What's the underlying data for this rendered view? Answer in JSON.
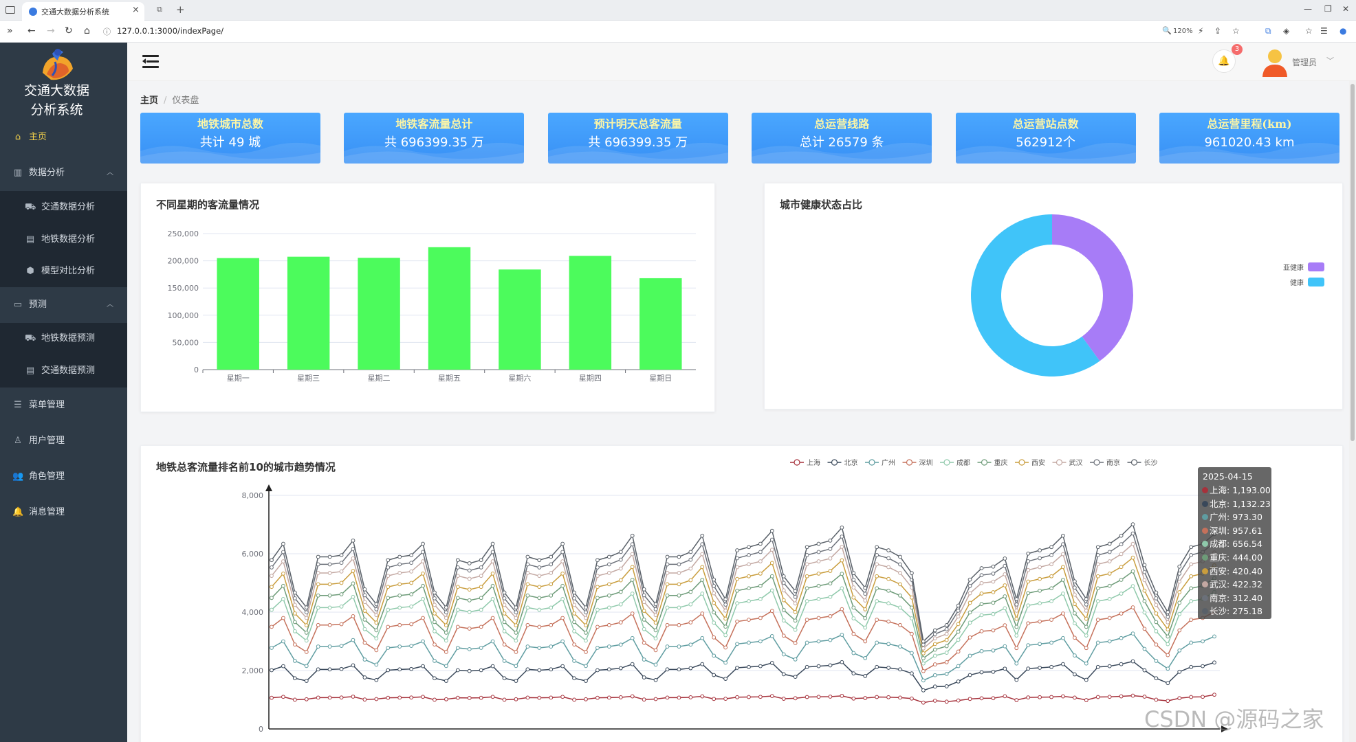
{
  "browser": {
    "tab_title": "交通大数据分析系统",
    "url": "127.0.0.1:3000/indexPage/",
    "zoom": "120%"
  },
  "sidebar": {
    "brand_line1": "交通大数据",
    "brand_line2": "分析系统",
    "items": [
      {
        "label": "主页",
        "icon": "home-icon"
      },
      {
        "label": "数据分析",
        "icon": "chart-icon"
      },
      {
        "label": "交通数据分析",
        "icon": "bus-icon"
      },
      {
        "label": "地铁数据分析",
        "icon": "metro-icon"
      },
      {
        "label": "模型对比分析",
        "icon": "cube-icon"
      },
      {
        "label": "预测",
        "icon": "monitor-icon"
      },
      {
        "label": "地铁数据预测",
        "icon": "bus-icon"
      },
      {
        "label": "交通数据预测",
        "icon": "metro-icon"
      },
      {
        "label": "菜单管理",
        "icon": "menu-icon"
      },
      {
        "label": "用户管理",
        "icon": "user-icon"
      },
      {
        "label": "角色管理",
        "icon": "team-icon"
      },
      {
        "label": "消息管理",
        "icon": "bell-icon"
      }
    ]
  },
  "header": {
    "notification_count": "3",
    "username": "管理员"
  },
  "breadcrumb": {
    "home": "主页",
    "current": "仪表盘"
  },
  "stats": [
    {
      "title": "地铁城市总数",
      "value": "共计 49 城"
    },
    {
      "title": "地铁客流量总计",
      "value": "共 696399.35 万"
    },
    {
      "title": "预计明天总客流量",
      "value": "共 696399.35 万"
    },
    {
      "title": "总运营线路",
      "value": "总计 26579 条"
    },
    {
      "title": "总运营站点数",
      "value": "562912个"
    },
    {
      "title": "总运营里程(km)",
      "value": "961020.43 km"
    }
  ],
  "colors": {
    "sidebar_bg": "#2e3a46",
    "active_menu": "#f7d44b",
    "stat_bg": "#3890f5",
    "bar": "#4cfb5c",
    "healthy": "#40c4f9",
    "sub_healthy": "#a77cf7"
  },
  "chart_data": [
    {
      "type": "bar",
      "title": "不同星期的客流量情况",
      "categories": [
        "星期一",
        "星期三",
        "星期二",
        "星期五",
        "星期六",
        "星期四",
        "星期日"
      ],
      "values": [
        205000,
        207500,
        205500,
        225000,
        184000,
        209000,
        168000
      ],
      "y_ticks": [
        "0",
        "50,000",
        "100,000",
        "150,000",
        "200,000",
        "250,000"
      ],
      "ylim": [
        0,
        250000
      ]
    },
    {
      "type": "pie",
      "title": "城市健康状态占比",
      "labels": [
        "亚健康",
        "健康"
      ],
      "values": [
        40,
        60
      ],
      "legend": "right"
    },
    {
      "type": "line",
      "title": "地铁总客流量排名前10的城市趋势情况",
      "y_ticks": [
        "0",
        "2,000",
        "4,000",
        "6,000",
        "8,000"
      ],
      "ylim": [
        0,
        8000
      ],
      "stacked": true,
      "base_pattern": [
        0.9,
        1.0,
        0.7,
        0.6,
        0.92,
        0.92,
        0.93,
        1.02,
        0.72,
        0.62,
        0.9,
        0.92,
        0.93,
        1.0,
        0.7,
        0.6,
        0.9,
        0.88,
        0.9,
        1.0,
        0.7,
        0.6,
        0.92,
        0.9,
        0.92,
        1.0,
        0.7,
        0.6,
        0.9,
        0.92,
        0.95,
        1.05,
        0.72,
        0.62,
        0.92,
        0.92,
        0.95,
        1.05,
        0.78,
        0.65,
        0.96,
        0.98,
        1.0,
        1.08,
        0.8,
        0.7,
        0.98,
        1.0,
        1.02,
        1.1,
        0.82,
        0.72,
        0.98,
        0.96,
        0.92,
        0.82,
        0.4,
        0.46,
        0.5,
        0.62,
        0.78,
        0.85,
        0.86,
        0.9,
        0.66,
        0.94,
        0.96,
        0.98,
        1.05,
        0.76,
        0.66,
        0.98,
        1.0,
        1.05,
        1.12,
        0.86,
        0.7,
        0.58,
        0.86,
        0.98,
        1.0,
        1.05
      ],
      "series": [
        {
          "name": "上海",
          "color": "#a6313b",
          "tooltip": "1,193.00"
        },
        {
          "name": "北京",
          "color": "#39485a",
          "tooltip": "1,132.23"
        },
        {
          "name": "广州",
          "color": "#5f9da1",
          "tooltip": "973.30"
        },
        {
          "name": "深圳",
          "color": "#c5715b",
          "tooltip": "957.61"
        },
        {
          "name": "成都",
          "color": "#8fc9ab",
          "tooltip": "656.54"
        },
        {
          "name": "重庆",
          "color": "#6d9b78",
          "tooltip": "444.00"
        },
        {
          "name": "西安",
          "color": "#c99d3d",
          "tooltip": "420.40"
        },
        {
          "name": "武汉",
          "color": "#c3a8a2",
          "tooltip": "422.32"
        },
        {
          "name": "南京",
          "color": "#6b7079",
          "tooltip": "312.40"
        },
        {
          "name": "长沙",
          "color": "#596068",
          "tooltip": "275.18"
        }
      ],
      "tooltip_date": "2025-04-15"
    }
  ],
  "watermark": "CSDN @源码之家"
}
